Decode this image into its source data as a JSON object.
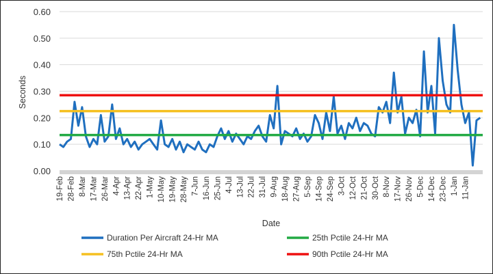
{
  "chart_data": {
    "type": "line",
    "title": "",
    "xlabel": "Date",
    "ylabel": "Seconds",
    "ylim": [
      0,
      0.6
    ],
    "yticks": [
      "0.00",
      "0.10",
      "0.20",
      "0.30",
      "0.40",
      "0.50",
      "0.60"
    ],
    "grid": true,
    "legend_placement": "bottom",
    "x_tick_labels": [
      "19-Feb",
      "28-Feb",
      "8-Mar",
      "17-Mar",
      "26-Mar",
      "4-Apr",
      "13-Apr",
      "22-Apr",
      "1-May",
      "10-May",
      "19-May",
      "28-May",
      "7-Jun",
      "16-Jun",
      "25-Jun",
      "4-Jul",
      "13-Jul",
      "22-Jul",
      "31-Jul",
      "9-Aug",
      "18-Aug",
      "27-Aug",
      "5-Sep",
      "14-Sep",
      "24-Sep",
      "3-Oct",
      "12-Oct",
      "21-Oct",
      "30-Oct",
      "8-Nov",
      "17-Nov",
      "26-Nov",
      "5-Dec",
      "14-Dec",
      "23-Dec",
      "1-Jan",
      "11-Jan"
    ],
    "x_days_per_label": 9,
    "x_range_days": [
      0,
      338
    ],
    "series": [
      {
        "name": "Duration Per Aircraft 24-Hr MA",
        "color": "#1f6fbf",
        "x_step_days": 3,
        "values": [
          0.1,
          0.09,
          0.11,
          0.12,
          0.26,
          0.17,
          0.24,
          0.13,
          0.09,
          0.12,
          0.1,
          0.21,
          0.11,
          0.13,
          0.25,
          0.12,
          0.16,
          0.1,
          0.12,
          0.09,
          0.11,
          0.08,
          0.1,
          0.11,
          0.12,
          0.1,
          0.08,
          0.19,
          0.1,
          0.09,
          0.12,
          0.08,
          0.11,
          0.07,
          0.1,
          0.09,
          0.08,
          0.11,
          0.08,
          0.07,
          0.1,
          0.09,
          0.13,
          0.16,
          0.12,
          0.15,
          0.11,
          0.14,
          0.12,
          0.1,
          0.13,
          0.12,
          0.15,
          0.17,
          0.13,
          0.11,
          0.21,
          0.16,
          0.32,
          0.1,
          0.15,
          0.14,
          0.13,
          0.16,
          0.12,
          0.14,
          0.11,
          0.13,
          0.21,
          0.18,
          0.12,
          0.22,
          0.15,
          0.28,
          0.14,
          0.17,
          0.12,
          0.18,
          0.16,
          0.2,
          0.15,
          0.18,
          0.17,
          0.14,
          0.13,
          0.24,
          0.22,
          0.26,
          0.18,
          0.37,
          0.22,
          0.28,
          0.14,
          0.2,
          0.18,
          0.23,
          0.13,
          0.45,
          0.22,
          0.32,
          0.14,
          0.5,
          0.34,
          0.25,
          0.22,
          0.55,
          0.38,
          0.25,
          0.18,
          0.22,
          0.02,
          0.19,
          0.2
        ]
      },
      {
        "name": "25th Pctile 24-Hr MA",
        "color": "#22aa44",
        "constant": 0.135
      },
      {
        "name": "75th Pctile 24-Hr MA",
        "color": "#f5c020",
        "constant": 0.225
      },
      {
        "name": "90th Pctile 24-Hr MA",
        "color": "#ee1111",
        "constant": 0.285
      }
    ]
  }
}
